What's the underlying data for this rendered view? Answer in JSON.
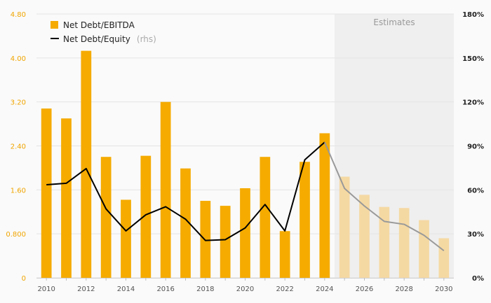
{
  "chart_data": {
    "type": "bar",
    "x": [
      2010,
      2011,
      2012,
      2013,
      2014,
      2015,
      2016,
      2017,
      2018,
      2019,
      2020,
      2021,
      2022,
      2023,
      2024,
      2025,
      2026,
      2027,
      2028,
      2029,
      2030
    ],
    "x_tick_labels": [
      "2010",
      "2012",
      "2014",
      "2016",
      "2018",
      "2020",
      "2022",
      "2024",
      "2026",
      "2028",
      "2030"
    ],
    "series": [
      {
        "name": "Net Debt/EBITDA",
        "type": "bar",
        "axis": "left",
        "color": "#f5ab00",
        "estimate_color": "#f5d9a3",
        "values": [
          3.08,
          2.9,
          4.13,
          2.2,
          1.42,
          2.22,
          3.2,
          1.99,
          1.4,
          1.31,
          1.63,
          2.2,
          0.85,
          2.11,
          2.63,
          1.84,
          1.51,
          1.29,
          1.27,
          1.05,
          0.72
        ]
      },
      {
        "name": "Net Debt/Equity",
        "name_suffix": "(rhs)",
        "type": "line",
        "axis": "right",
        "color": "#000000",
        "estimate_color": "#999999",
        "values": [
          63.5,
          64.5,
          74.5,
          47,
          32,
          43,
          48.5,
          40,
          25.5,
          26,
          34,
          50,
          32,
          80.5,
          92.5,
          61,
          49,
          38.5,
          36.5,
          29,
          18.5
        ]
      }
    ],
    "estimates_start_year": 2025,
    "estimates_label": "Estimates",
    "y_left": {
      "min": 0,
      "max": 4.8,
      "ticks": [
        0,
        0.8,
        1.6,
        2.4,
        3.2,
        4.0,
        4.8
      ],
      "tick_labels": [
        "0",
        "0.800",
        "1.60",
        "2.40",
        "3.20",
        "4.00",
        "4.80"
      ]
    },
    "y_right": {
      "min": 0,
      "max": 180,
      "ticks": [
        0,
        30,
        60,
        90,
        120,
        150,
        180
      ],
      "tick_labels": [
        "0%",
        "30%",
        "60%",
        "90%",
        "120%",
        "150%",
        "180%"
      ]
    },
    "grid": true,
    "legend_position": "top-left"
  }
}
